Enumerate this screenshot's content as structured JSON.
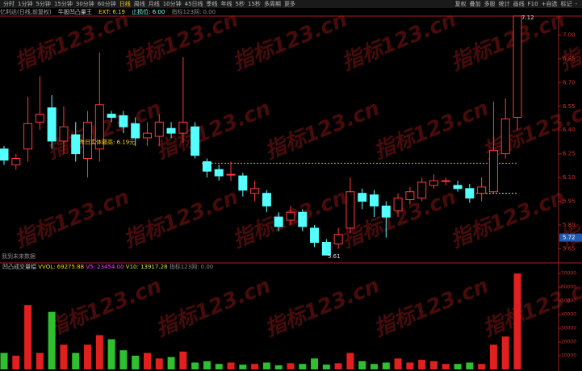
{
  "toolbar": {
    "periods": [
      "分时",
      "1分钟",
      "5分钟",
      "15分钟",
      "30分钟",
      "60分钟",
      "日线",
      "周线",
      "月线",
      "10分钟",
      "45日线",
      "季线",
      "年线",
      "5秒",
      "15秒",
      "多周期",
      "更多"
    ],
    "active_index": 6,
    "tools": [
      "复权",
      "叠加",
      "多股",
      "统计",
      "画线",
      "F10",
      "+自选",
      "标记",
      "-"
    ]
  },
  "header": {
    "stock": "亿利达(日线,前复权)",
    "indicator": "牛股凹凸量王",
    "ext": "EXT: 6.19",
    "stop": "止损位: 6.00",
    "site": "指标123网: 0.00"
  },
  "watermark": "指标123.cn",
  "chart_data": [
    {
      "type": "candlestick",
      "open": [
        6.28,
        6.18,
        6.28,
        6.45,
        6.54,
        6.33,
        6.37,
        6.22,
        6.28,
        6.5,
        6.49,
        6.44,
        6.35,
        6.36,
        6.41,
        6.38,
        6.42,
        6.2,
        6.15,
        6.12,
        6.11,
        6.0,
        6.0,
        5.85,
        5.83,
        5.88,
        5.78,
        5.69,
        5.68,
        5.78,
        6.0,
        5.99,
        5.92,
        5.89,
        5.96,
        5.97,
        6.05,
        6.08,
        6.05,
        6.03,
        6.0,
        6.01,
        6.25,
        6.48
      ],
      "high": [
        6.3,
        6.25,
        6.61,
        6.74,
        6.62,
        6.55,
        6.45,
        6.52,
        6.89,
        6.52,
        6.52,
        6.48,
        6.45,
        6.5,
        6.45,
        6.86,
        6.45,
        6.22,
        6.18,
        6.2,
        6.13,
        6.08,
        6.02,
        5.88,
        5.92,
        5.9,
        5.8,
        5.71,
        5.78,
        6.1,
        6.03,
        6.02,
        5.95,
        6.0,
        6.04,
        6.1,
        6.12,
        6.1,
        6.08,
        6.06,
        6.1,
        6.58,
        6.6,
        7.12
      ],
      "low": [
        6.18,
        6.15,
        6.2,
        6.4,
        6.28,
        6.25,
        6.2,
        6.1,
        6.2,
        6.45,
        6.38,
        6.3,
        6.3,
        6.3,
        6.35,
        6.32,
        6.22,
        6.1,
        6.08,
        6.08,
        5.98,
        5.95,
        5.88,
        5.76,
        5.8,
        5.76,
        5.66,
        5.61,
        5.65,
        5.75,
        5.9,
        5.85,
        5.72,
        5.85,
        5.93,
        5.95,
        6.03,
        6.05,
        6.01,
        5.94,
        5.95,
        6.0,
        6.22,
        6.4
      ],
      "close": [
        6.21,
        6.22,
        6.44,
        6.5,
        6.33,
        6.42,
        6.25,
        6.45,
        6.56,
        6.48,
        6.42,
        6.35,
        6.38,
        6.45,
        6.38,
        6.45,
        6.24,
        6.14,
        6.11,
        6.12,
        6.02,
        6.03,
        5.92,
        5.79,
        5.88,
        5.79,
        5.69,
        5.61,
        5.74,
        6.01,
        5.95,
        5.92,
        5.85,
        5.97,
        6.01,
        6.07,
        6.08,
        6.08,
        6.03,
        5.97,
        6.04,
        6.27,
        6.47,
        7.12
      ],
      "up_color": "#ff3a3a",
      "down_color": "#54ffff",
      "ylim": [
        5.55,
        7.15
      ],
      "yticks": [
        {
          "value": 7.0,
          "label": "7.00"
        },
        {
          "value": 6.85,
          "label": "6.85"
        },
        {
          "value": 6.7,
          "label": "6.70"
        },
        {
          "value": 6.55,
          "label": "6.55"
        },
        {
          "value": 6.4,
          "label": "6.40"
        },
        {
          "value": 6.25,
          "label": "6.25"
        },
        {
          "value": 6.1,
          "label": "6.10"
        },
        {
          "value": 5.95,
          "label": "5.95"
        },
        {
          "value": 5.8,
          "label": "5.80"
        },
        {
          "value": 5.65,
          "label": "5.65"
        }
      ],
      "levels": [
        {
          "value": 6.19,
          "color": "#e0a020"
        },
        {
          "value": 6.0,
          "color": "#dddddd"
        }
      ],
      "annotation": "昨日实体最高: 6.19元",
      "low_label": 5.61,
      "high_label": 7.12,
      "current_price": 5.72,
      "footnote": "我到未来数据"
    },
    {
      "type": "bar",
      "values": [
        12000,
        10000,
        47000,
        12000,
        42000,
        18000,
        12000,
        18000,
        25000,
        22000,
        14000,
        10000,
        12000,
        8000,
        9000,
        13000,
        5000,
        6000,
        4000,
        5000,
        3500,
        4000,
        5000,
        3000,
        4500,
        4000,
        8000,
        3500,
        4500,
        12000,
        6000,
        4000,
        5000,
        8000,
        5000,
        7000,
        6000,
        4000,
        4000,
        5000,
        4000,
        18000,
        24000,
        70000
      ],
      "up_color": "#e0201e",
      "down_color": "#2fbf2f",
      "ylim": [
        0,
        73000
      ],
      "yticks": [
        10000,
        20000,
        30000,
        40000,
        50000,
        60000,
        70000
      ],
      "legend": {
        "name": "凹凸成交量幅",
        "vvol": "VVOL: 69275.88",
        "v5": "V5: 23454.00",
        "v10": "V10: 13917.28",
        "site": "指标123网: 0.00"
      }
    }
  ]
}
